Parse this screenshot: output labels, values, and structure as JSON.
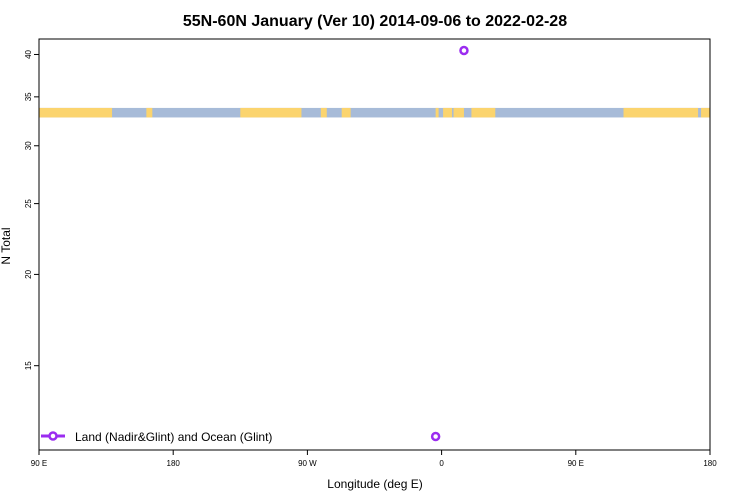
{
  "chart_data": {
    "type": "scatter",
    "title": "55N-60N January (Ver 10)   2014-09-06 to 2022-02-28",
    "xlabel": "Longitude (deg E)",
    "ylabel": "N Total",
    "x_tick_labels": [
      "90 E",
      "180",
      "90 W",
      "0",
      "90 E",
      "180"
    ],
    "x_tick_values": [
      90,
      180,
      270,
      360,
      450,
      540
    ],
    "xlim": [
      90,
      540
    ],
    "y_scale": "log",
    "ylim": [
      11.5,
      42
    ],
    "y_ticks": [
      15,
      20,
      25,
      30,
      35,
      40
    ],
    "grid": false,
    "legend_position": "bottom-left",
    "series": [
      {
        "name": "Land (Nadir&Glint) and Ocean (Glint)",
        "color": "#9b2cf0",
        "marker": "open-circle",
        "points": [
          {
            "x": 375,
            "y": 40.5
          },
          {
            "x": 356,
            "y": 12.0
          }
        ]
      }
    ],
    "land_ocean_band": {
      "y_range": [
        32.8,
        33.8
      ],
      "land_color": "#fbd46e",
      "ocean_color": "#a7bbd8",
      "land_segments": [
        [
          90,
          139
        ],
        [
          162,
          166
        ],
        [
          225,
          266
        ],
        [
          279,
          283
        ],
        [
          293,
          299
        ],
        [
          356,
          358
        ],
        [
          361,
          367
        ],
        [
          368,
          375
        ],
        [
          380,
          396
        ],
        [
          482,
          532
        ],
        [
          534,
          541
        ]
      ]
    }
  }
}
